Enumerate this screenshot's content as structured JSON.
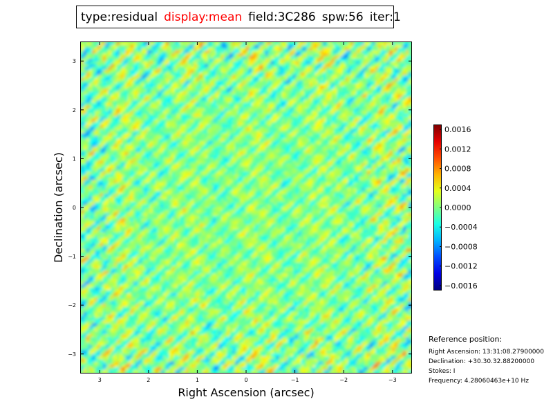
{
  "header": {
    "type": "type:residual",
    "display": "display:mean",
    "field": "field:3C286",
    "spw": "spw:56",
    "iter": "iter:1",
    "display_color": "#ff0000"
  },
  "chart_data": {
    "type": "heatmap",
    "title": "",
    "xlabel": "Right Ascension (arcsec)",
    "ylabel": "Declination (arcsec)",
    "xlim": [
      3.4,
      -3.4
    ],
    "ylim": [
      -3.4,
      3.4
    ],
    "x_ticks": [
      3,
      2,
      1,
      0,
      -1,
      -2,
      -3
    ],
    "x_tick_labels": [
      "3",
      "2",
      "1",
      "0",
      "−1",
      "−2",
      "−3"
    ],
    "y_ticks": [
      3,
      2,
      1,
      0,
      -1,
      -2,
      -3
    ],
    "y_tick_labels": [
      "3",
      "2",
      "1",
      "0",
      "−1",
      "−2",
      "−3"
    ],
    "colormap": "jet",
    "colorbar": {
      "min": -0.0017,
      "max": 0.0017,
      "ticks": [
        0.0016,
        0.0012,
        0.0008,
        0.0004,
        0.0,
        -0.0004,
        -0.0008,
        -0.0012,
        -0.0016
      ],
      "tick_labels": [
        "0.0016",
        "0.0012",
        "0.0008",
        "0.0004",
        "0.0000",
        "−0.0004",
        "−0.0008",
        "−0.0012",
        "−0.0016"
      ]
    },
    "description_values": "residual noise image, values roughly within ±0.0016"
  },
  "reference": {
    "heading": "Reference position:",
    "ra": "Right Ascension: 13:31:08.27900000",
    "dec": "Declination: +30.30.32.88200000",
    "stokes": "Stokes: I",
    "frequency": "Frequency: 4.28060463e+10 Hz"
  }
}
